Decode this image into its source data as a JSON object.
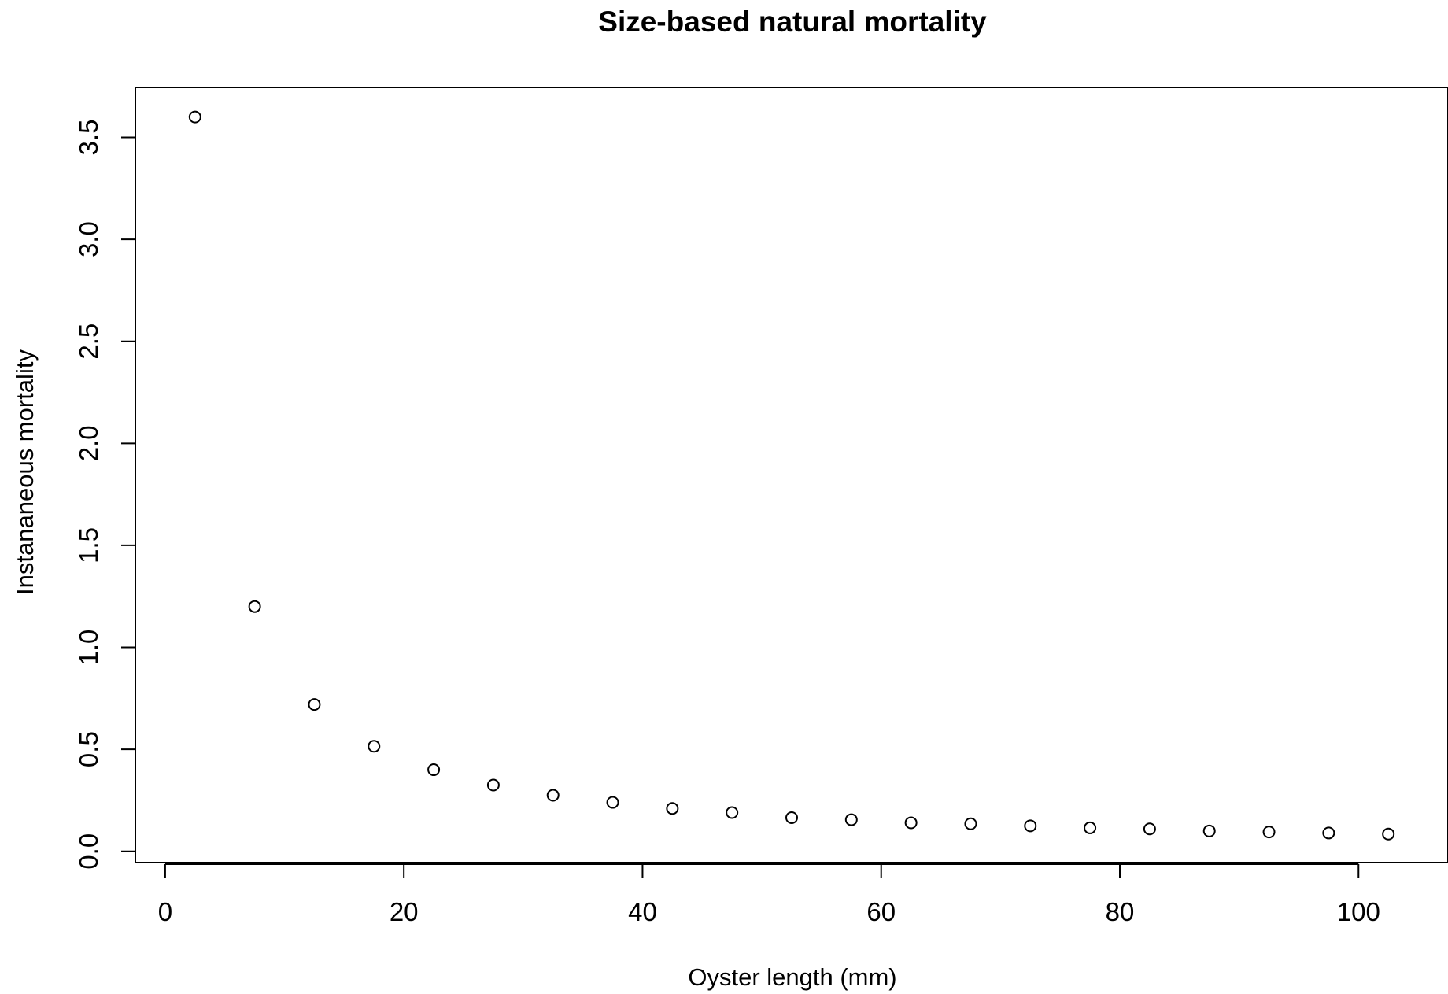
{
  "chart_data": {
    "type": "scatter",
    "title": "Size-based natural mortality",
    "xlabel": "Oyster length (mm)",
    "ylabel": "Instananeous mortality",
    "xlim": [
      -2.5,
      107.5
    ],
    "ylim": [
      -0.055,
      3.745
    ],
    "xticks": [
      0,
      20,
      40,
      60,
      80,
      100
    ],
    "yticks": [
      0.0,
      0.5,
      1.0,
      1.5,
      2.0,
      2.5,
      3.0,
      3.5
    ],
    "xtick_labels": [
      "0",
      "20",
      "40",
      "60",
      "80",
      "100"
    ],
    "ytick_labels": [
      "0.0",
      "0.5",
      "1.0",
      "1.5",
      "2.0",
      "2.5",
      "3.0",
      "3.5"
    ],
    "grid": false,
    "legend": "none",
    "marker": "open-circle",
    "series": [
      {
        "x": [
          2.5,
          7.5,
          12.5,
          17.5,
          22.5,
          27.5,
          32.5,
          37.5,
          42.5,
          47.5,
          52.5,
          57.5,
          62.5,
          67.5,
          72.5,
          77.5,
          82.5,
          87.5,
          92.5,
          97.5,
          102.5
        ],
        "y": [
          3.6,
          1.2,
          0.72,
          0.515,
          0.4,
          0.325,
          0.275,
          0.24,
          0.21,
          0.19,
          0.165,
          0.155,
          0.14,
          0.135,
          0.125,
          0.115,
          0.11,
          0.1,
          0.095,
          0.09,
          0.085
        ]
      }
    ]
  }
}
